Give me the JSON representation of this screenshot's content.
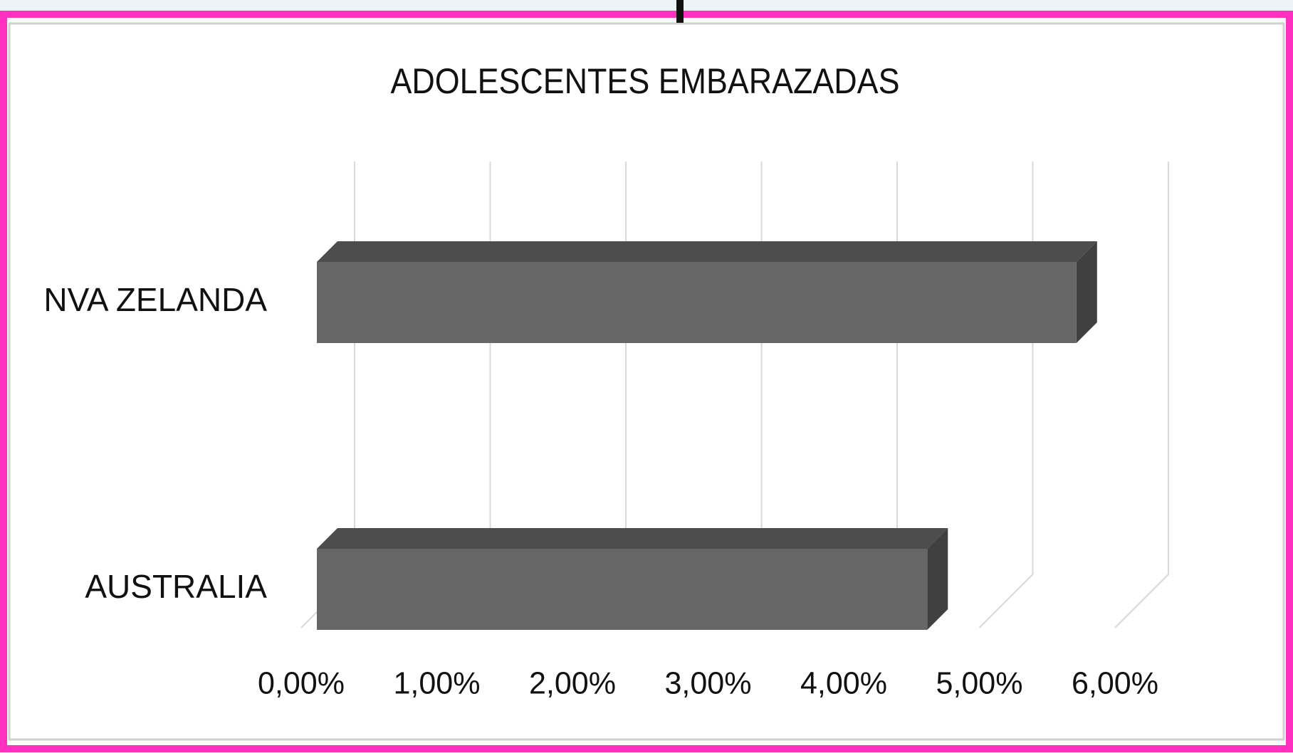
{
  "chart_data": {
    "type": "bar3d",
    "orientation": "horizontal",
    "title": "ADOLESCENTES EMBARAZADAS",
    "categories": [
      "NVA ZELANDA",
      "AUSTRALIA"
    ],
    "values": [
      5.6,
      4.5
    ],
    "color": "#666666",
    "xlim": [
      0,
      6
    ],
    "xticks": [
      {
        "value": 0,
        "label": "0,00%"
      },
      {
        "value": 1,
        "label": "1,00%"
      },
      {
        "value": 2,
        "label": "2,00%"
      },
      {
        "value": 3,
        "label": "3,00%"
      },
      {
        "value": 4,
        "label": "4,00%"
      },
      {
        "value": 5,
        "label": "5,00%"
      },
      {
        "value": 6,
        "label": "6,00%"
      }
    ],
    "grid": true
  }
}
